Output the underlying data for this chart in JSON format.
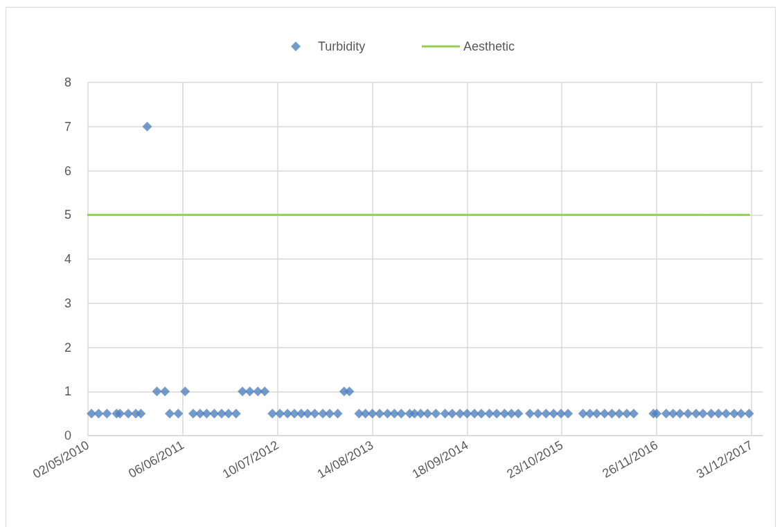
{
  "chart_data": {
    "type": "scatter",
    "marker": "diamond",
    "grid": true,
    "legend": "top",
    "xlim": [
      "2010-05-02",
      "2018-02-16"
    ],
    "xticks": [
      {
        "value": "2010-05-02",
        "label": "02/05/2010"
      },
      {
        "value": "2011-06-06",
        "label": "06/06/2011"
      },
      {
        "value": "2012-07-10",
        "label": "10/07/2012"
      },
      {
        "value": "2013-08-14",
        "label": "14/08/2013"
      },
      {
        "value": "2014-09-18",
        "label": "18/09/2014"
      },
      {
        "value": "2015-10-23",
        "label": "23/10/2015"
      },
      {
        "value": "2016-11-26",
        "label": "26/11/2016"
      },
      {
        "value": "2017-12-31",
        "label": "31/12/2017"
      }
    ],
    "ylim": [
      0,
      8
    ],
    "yticks": [
      0,
      1,
      2,
      3,
      4,
      5,
      6,
      7,
      8
    ],
    "series": [
      {
        "name": "Turbidity",
        "color": "#4f81bd",
        "x": [
          "2010-05-17",
          "2010-06-16",
          "2010-07-21",
          "2010-08-31",
          "2010-09-14",
          "2010-10-19",
          "2010-11-20",
          "2010-12-11",
          "2011-01-07",
          "2011-02-17",
          "2011-03-23",
          "2011-04-12",
          "2011-05-18",
          "2011-06-16",
          "2011-07-20",
          "2011-08-18",
          "2011-09-15",
          "2011-10-17",
          "2011-11-17",
          "2011-12-16",
          "2012-01-17",
          "2012-02-13",
          "2012-03-15",
          "2012-04-18",
          "2012-05-17",
          "2012-06-18",
          "2012-07-20",
          "2012-08-21",
          "2012-09-19",
          "2012-10-18",
          "2012-11-14",
          "2012-12-14",
          "2013-01-17",
          "2013-02-15",
          "2013-03-21",
          "2013-04-17",
          "2013-05-09",
          "2013-06-19",
          "2013-07-16",
          "2013-08-14",
          "2013-09-14",
          "2013-10-17",
          "2013-11-15",
          "2013-12-14",
          "2014-01-19",
          "2014-02-08",
          "2014-03-06",
          "2014-04-04",
          "2014-05-09",
          "2014-06-17",
          "2014-07-17",
          "2014-08-19",
          "2014-09-18",
          "2014-10-19",
          "2014-11-17",
          "2014-12-21",
          "2015-01-21",
          "2015-02-23",
          "2015-03-24",
          "2015-04-22",
          "2015-06-10",
          "2015-07-14",
          "2015-08-17",
          "2015-09-18",
          "2015-10-19",
          "2015-11-18",
          "2016-01-20",
          "2016-02-18",
          "2016-03-18",
          "2016-04-20",
          "2016-05-21",
          "2016-06-21",
          "2016-07-23",
          "2016-08-21",
          "2016-11-12",
          "2016-11-26",
          "2017-01-05",
          "2017-02-03",
          "2017-03-04",
          "2017-04-07",
          "2017-05-11",
          "2017-06-09",
          "2017-07-14",
          "2017-08-14",
          "2017-09-15",
          "2017-10-19",
          "2017-11-17",
          "2017-12-21"
        ],
        "values": [
          0.5,
          0.5,
          0.5,
          0.5,
          0.5,
          0.5,
          0.5,
          0.5,
          7,
          1,
          1,
          0.5,
          0.5,
          1,
          0.5,
          0.5,
          0.5,
          0.5,
          0.5,
          0.5,
          0.5,
          1,
          1,
          1,
          1,
          0.5,
          0.5,
          0.5,
          0.5,
          0.5,
          0.5,
          0.5,
          0.5,
          0.5,
          0.5,
          1,
          1,
          0.5,
          0.5,
          0.5,
          0.5,
          0.5,
          0.5,
          0.5,
          0.5,
          0.5,
          0.5,
          0.5,
          0.5,
          0.5,
          0.5,
          0.5,
          0.5,
          0.5,
          0.5,
          0.5,
          0.5,
          0.5,
          0.5,
          0.5,
          0.5,
          0.5,
          0.5,
          0.5,
          0.5,
          0.5,
          0.5,
          0.5,
          0.5,
          0.5,
          0.5,
          0.5,
          0.5,
          0.5,
          0.5,
          0.5,
          0.5,
          0.5,
          0.5,
          0.5,
          0.5,
          0.5,
          0.5,
          0.5,
          0.5,
          0.5,
          0.5,
          0.5
        ]
      },
      {
        "name": "Aesthetic",
        "type": "line",
        "marker": "none",
        "line_style": "solid",
        "color": "#92d050",
        "x": [
          "2010-05-02",
          "2017-12-21"
        ],
        "values": [
          5,
          5
        ]
      }
    ]
  }
}
